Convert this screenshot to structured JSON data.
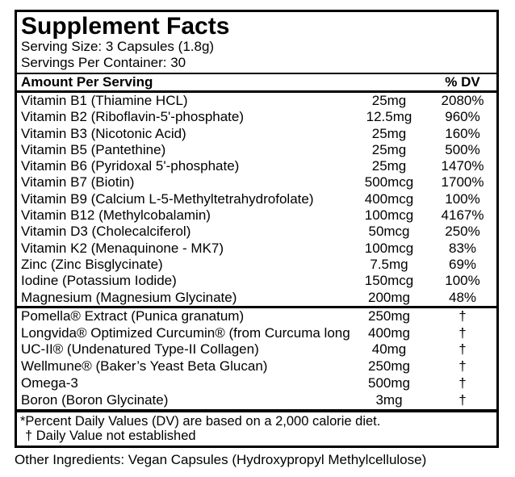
{
  "colors": {
    "text": "#000000",
    "border": "#000000",
    "background": "#ffffff"
  },
  "label": {
    "title": "Supplement Facts",
    "serving_size": "Serving Size: 3 Capsules (1.8g)",
    "servings_per_container": "Servings Per Container: 30",
    "columns": {
      "amount_header": "Amount Per Serving",
      "dv_header": "% DV"
    },
    "nutrients": [
      {
        "name": "Vitamin B1 (Thiamine HCL)",
        "amount": "25mg",
        "dv": "2080%"
      },
      {
        "name": "Vitamin B2 (Riboflavin-5'-phosphate)",
        "amount": "12.5mg",
        "dv": "960%"
      },
      {
        "name": "Vitamin B3 (Nicotonic Acid)",
        "amount": "25mg",
        "dv": "160%"
      },
      {
        "name": "Vitamin B5 (Pantethine)",
        "amount": "25mg",
        "dv": "500%"
      },
      {
        "name": "Vitamin B6 (Pyridoxal 5'-phosphate)",
        "amount": "25mg",
        "dv": "1470%"
      },
      {
        "name": "Vitamin B7 (Biotin)",
        "amount": "500mcg",
        "dv": "1700%"
      },
      {
        "name": "Vitamin B9 (Calcium L-5-Methyltetrahydrofolate)",
        "amount": "400mcg",
        "dv": "100%"
      },
      {
        "name": "Vitamin B12 (Methylcobalamin)",
        "amount": "100mcg",
        "dv": "4167%"
      },
      {
        "name": "Vitamin D3 (Cholecalciferol)",
        "amount": "50mcg",
        "dv": "250%"
      },
      {
        "name": "Vitamin K2 (Menaquinone - MK7)",
        "amount": "100mcg",
        "dv": "83%"
      },
      {
        "name": "Zinc (Zinc Bisglycinate)",
        "amount": "7.5mg",
        "dv": "69%"
      },
      {
        "name": "Iodine (Potassium Iodide)",
        "amount": "150mcg",
        "dv": "100%"
      },
      {
        "name": "Magnesium (Magnesium Glycinate)",
        "amount": "200mg",
        "dv": "48%"
      }
    ],
    "botanicals": [
      {
        "name": "Pomella® Extract (Punica granatum)",
        "amount": "250mg",
        "dv": "†"
      },
      {
        "name": "Longvida® Optimized Curcumin® (from Curcuma longa roo",
        "amount": "400mg",
        "dv": "†"
      },
      {
        "name": "UC-II® (Undenatured Type-II Collagen)",
        "amount": "40mg",
        "dv": "†"
      },
      {
        "name": "Wellmune® (Baker’s Yeast Beta Glucan)",
        "amount": "250mg",
        "dv": "†"
      },
      {
        "name": "Omega-3",
        "amount": "500mg",
        "dv": "†"
      },
      {
        "name": "Boron (Boron Glycinate)",
        "amount": "3mg",
        "dv": "†"
      }
    ],
    "footnotes": {
      "dv_note": "*Percent Daily Values (DV) are based on a 2,000 calorie diet.",
      "dagger_note": "† Daily Value not established"
    },
    "other_ingredients": "Other Ingredients: Vegan Capsules (Hydroxypropyl Methylcellulose)"
  }
}
